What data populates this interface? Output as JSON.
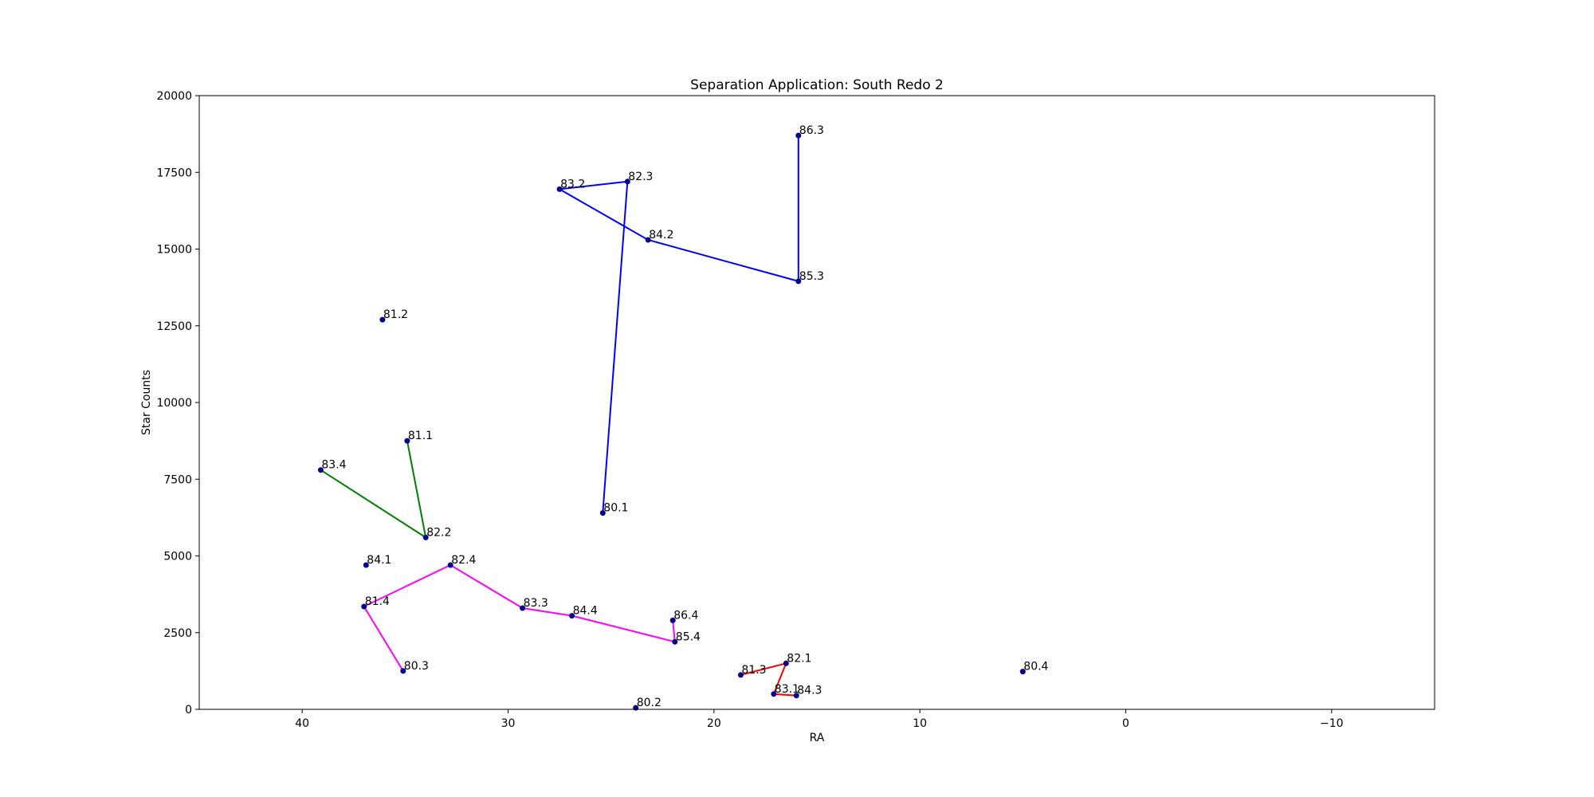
{
  "chart_data": {
    "type": "scatter",
    "title": "Separation Application: South Redo 2",
    "xlabel": "RA",
    "ylabel": "Star Counts",
    "xlim": [
      45,
      -15
    ],
    "ylim": [
      0,
      20000
    ],
    "x_ticks": [
      40,
      30,
      20,
      10,
      0,
      -10
    ],
    "x_tick_labels": [
      "40",
      "30",
      "20",
      "10",
      "0",
      "−10"
    ],
    "y_ticks": [
      0,
      2500,
      5000,
      7500,
      10000,
      12500,
      15000,
      17500,
      20000
    ],
    "y_tick_labels": [
      "0",
      "2500",
      "5000",
      "7500",
      "10000",
      "12500",
      "15000",
      "17500",
      "20000"
    ],
    "grid": false,
    "point_color": "#00008b",
    "points": [
      {
        "label": "80.1",
        "x": 25.4,
        "y": 6400
      },
      {
        "label": "80.2",
        "x": 23.8,
        "y": 50
      },
      {
        "label": "80.3",
        "x": 35.1,
        "y": 1250
      },
      {
        "label": "80.4",
        "x": 5.0,
        "y": 1230
      },
      {
        "label": "81.1",
        "x": 34.9,
        "y": 8750
      },
      {
        "label": "81.2",
        "x": 36.1,
        "y": 12700
      },
      {
        "label": "81.3",
        "x": 18.7,
        "y": 1120
      },
      {
        "label": "81.4",
        "x": 37.0,
        "y": 3350
      },
      {
        "label": "82.1",
        "x": 16.5,
        "y": 1500
      },
      {
        "label": "82.2",
        "x": 34.0,
        "y": 5600
      },
      {
        "label": "82.3",
        "x": 24.2,
        "y": 17200
      },
      {
        "label": "82.4",
        "x": 32.8,
        "y": 4700
      },
      {
        "label": "83.1",
        "x": 17.1,
        "y": 500
      },
      {
        "label": "83.2",
        "x": 27.5,
        "y": 16950
      },
      {
        "label": "83.3",
        "x": 29.3,
        "y": 3300
      },
      {
        "label": "83.4",
        "x": 39.1,
        "y": 7800
      },
      {
        "label": "84.1",
        "x": 36.9,
        "y": 4700
      },
      {
        "label": "84.2",
        "x": 23.2,
        "y": 15300
      },
      {
        "label": "84.3",
        "x": 16.0,
        "y": 450
      },
      {
        "label": "84.4",
        "x": 26.9,
        "y": 3050
      },
      {
        "label": "85.3",
        "x": 15.9,
        "y": 13950
      },
      {
        "label": "85.4",
        "x": 21.9,
        "y": 2200
      },
      {
        "label": "86.3",
        "x": 15.9,
        "y": 18700
      },
      {
        "label": "86.4",
        "x": 22.0,
        "y": 2900
      }
    ],
    "series": [
      {
        "color": "#0000ff",
        "labels": [
          "80.1",
          "82.3",
          "83.2",
          "84.2",
          "85.3",
          "86.3"
        ]
      },
      {
        "color": "#008000",
        "labels": [
          "81.1",
          "82.2",
          "83.4"
        ]
      },
      {
        "color": "#ff00ff",
        "labels": [
          "80.3",
          "81.4",
          "82.4",
          "83.3",
          "84.4",
          "85.4",
          "86.4"
        ]
      },
      {
        "color": "#ff0000",
        "labels": [
          "81.3",
          "82.1",
          "83.1",
          "84.3"
        ]
      }
    ]
  }
}
